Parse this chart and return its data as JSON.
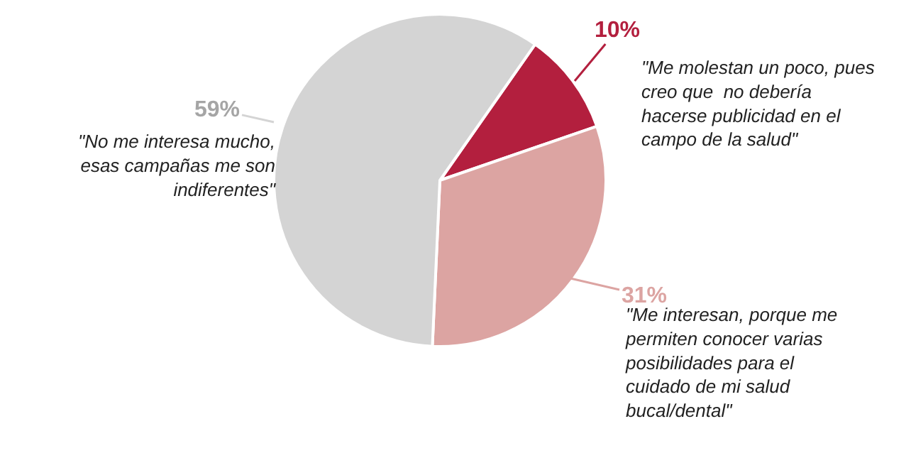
{
  "chart_data": {
    "type": "pie",
    "categories": [
      "\"Me molestan un poco, pues creo que  no debería hacerse publicidad en el campo de la salud\"",
      "\"Me interesan, porque me permiten conocer varias posibilidades para el cuidado de mi salud bucal/dental\"",
      "\"No me interesa mucho, esas campañas me son indiferentes\""
    ],
    "values": [
      10,
      31,
      59
    ],
    "value_labels": [
      "10%",
      "31%",
      "59%"
    ],
    "colors": [
      "#b31f3e",
      "#dca4a2",
      "#d4d4d4"
    ],
    "legend": false
  }
}
